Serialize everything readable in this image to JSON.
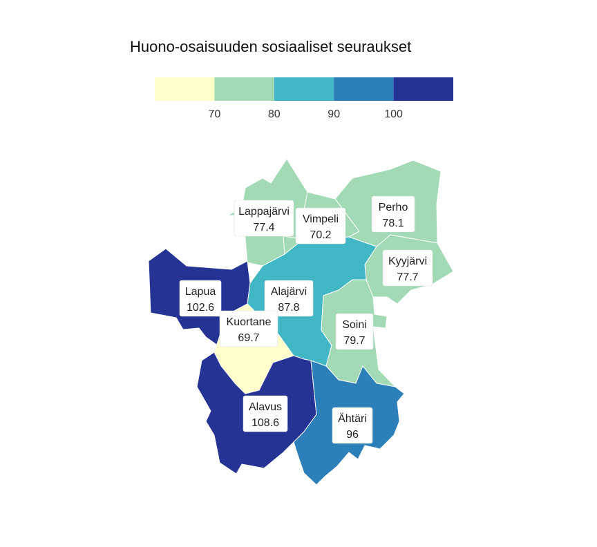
{
  "title": "Huono-osaisuuden sosiaaliset seuraukset",
  "legend": {
    "colors": [
      "#ffffcc",
      "#a1dab4",
      "#41b6c4",
      "#2c7fb8",
      "#253494"
    ],
    "breaks": [
      "70",
      "80",
      "90",
      "100"
    ]
  },
  "municipalities": [
    {
      "name": "Lappajärvi",
      "value": "77.4",
      "color": "#a1dab4"
    },
    {
      "name": "Vimpeli",
      "value": "70.2",
      "color": "#a1dab4"
    },
    {
      "name": "Perho",
      "value": "78.1",
      "color": "#a1dab4"
    },
    {
      "name": "Kyyjärvi",
      "value": "77.7",
      "color": "#a1dab4"
    },
    {
      "name": "Lapua",
      "value": "102.6",
      "color": "#253494"
    },
    {
      "name": "Alajärvi",
      "value": "87.8",
      "color": "#41b6c4"
    },
    {
      "name": "Kuortane",
      "value": "69.7",
      "color": "#ffffcc"
    },
    {
      "name": "Soini",
      "value": "79.7",
      "color": "#a1dab4"
    },
    {
      "name": "Alavus",
      "value": "108.6",
      "color": "#253494"
    },
    {
      "name": "Ähtäri",
      "value": "96",
      "color": "#2c7fb8"
    }
  ]
}
